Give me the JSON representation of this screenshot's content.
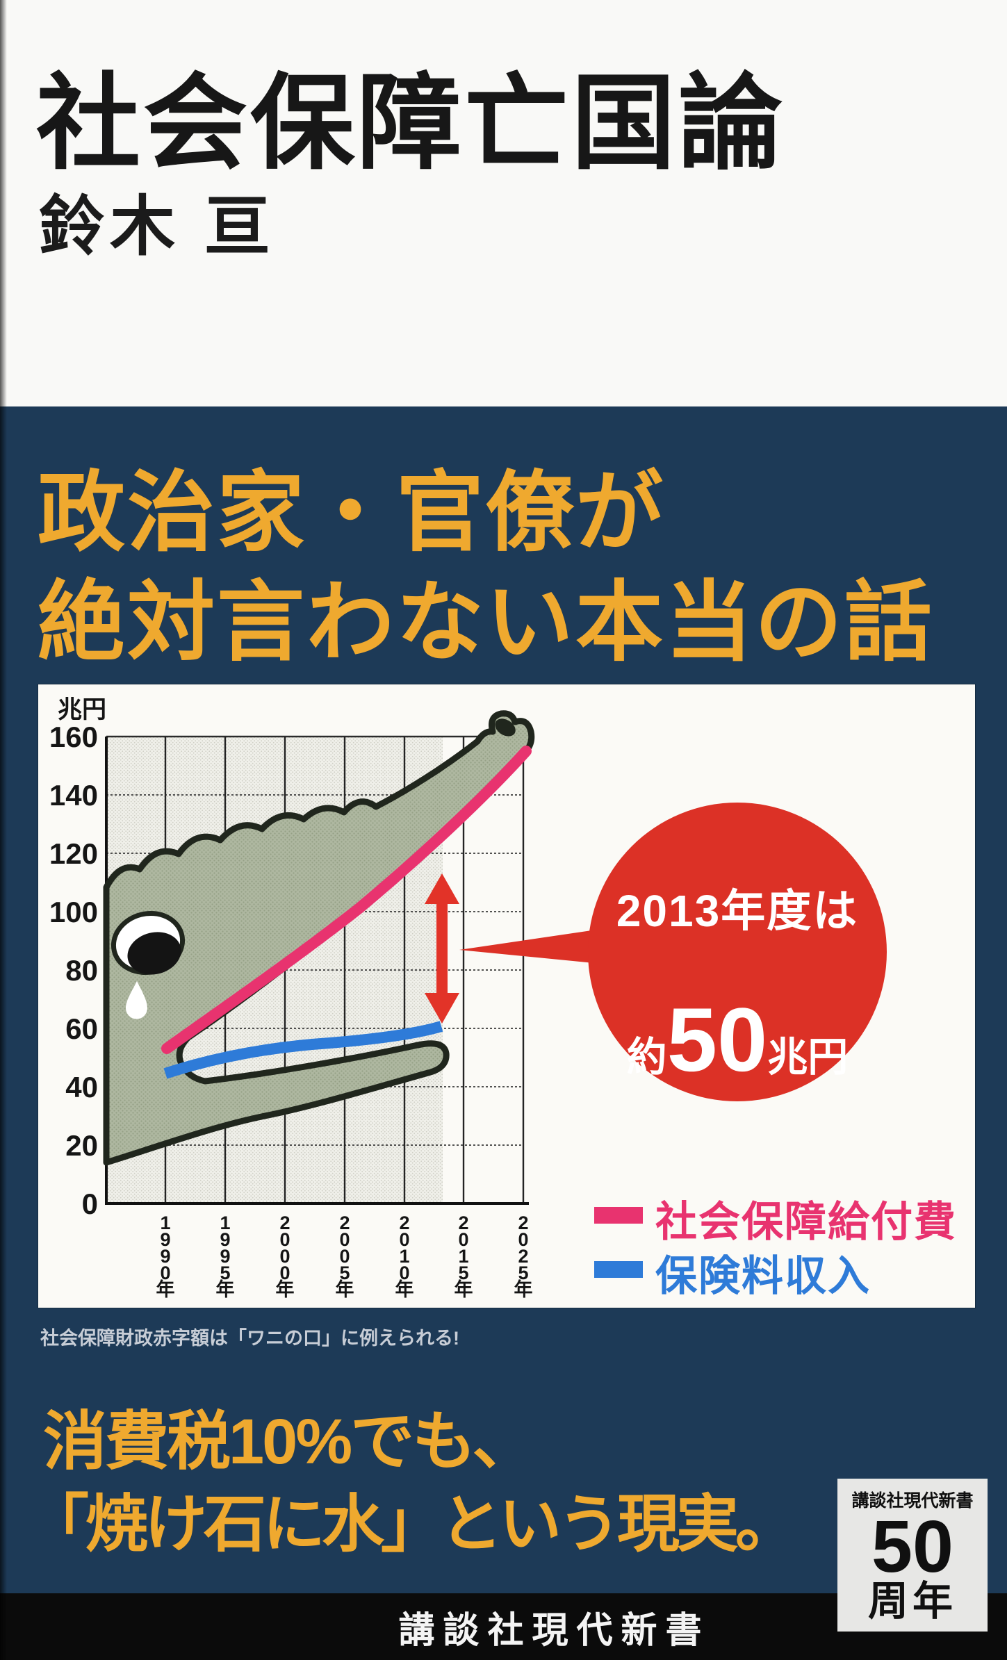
{
  "cover": {
    "title": "社会保障亡国論",
    "author": "鈴木 亘",
    "tagline_line1": "政治家・官僚が",
    "tagline_line2": "絶対言わない本当の話",
    "chart_caption": "社会保障財政赤字額は「ワニの口」に例えられる!",
    "bottom_line1": "消費税10%でも、",
    "bottom_line2": "「焼け石に水」という現実。",
    "publisher_strip": "講談社現代新書",
    "anniversary_badge": {
      "publisher": "講談社現代新書",
      "number": "50",
      "unit": "周年"
    }
  },
  "colors": {
    "navy_background": "#1d3a57",
    "accent_yellow": "#efa92f",
    "benefits_pink": "#e8336f",
    "premium_blue": "#2e7bd8",
    "annotation_red": "#dc3126",
    "crocodile_green": "#a9b39a",
    "panel_white": "#fbfaf6",
    "strip_black": "#0b0b0b"
  },
  "chart_data": {
    "type": "area",
    "title": "",
    "unit_label": "兆円",
    "ylim": [
      0,
      160
    ],
    "yticks": [
      0,
      20,
      40,
      60,
      80,
      100,
      120,
      140,
      160
    ],
    "xticklabels": [
      "1990年",
      "1995年",
      "2000年",
      "2005年",
      "2010年",
      "2015年",
      "2025年"
    ],
    "grid": true,
    "shaded_until_year": 2013,
    "illustration": "crocodile-open-mouth",
    "series": [
      {
        "name": "社会保障給付費",
        "color": "#e8336f",
        "x": [
          1990,
          1995,
          2000,
          2005,
          2010,
          2013,
          2015,
          2020,
          2025
        ],
        "values": [
          56,
          68,
          80,
          89,
          100,
          110,
          118,
          133,
          150
        ]
      },
      {
        "name": "保険料収入",
        "color": "#2e7bd8",
        "x": [
          1990,
          1995,
          2000,
          2005,
          2010,
          2013
        ],
        "values": [
          48,
          53,
          54,
          55,
          58,
          61
        ]
      }
    ],
    "annotation": {
      "line1": "2013年度は",
      "prefix": "約",
      "big": "50",
      "suffix": "兆円",
      "gap_year": 2013,
      "gap_trillion_yen": 50
    },
    "legend_position": "bottom-right"
  }
}
